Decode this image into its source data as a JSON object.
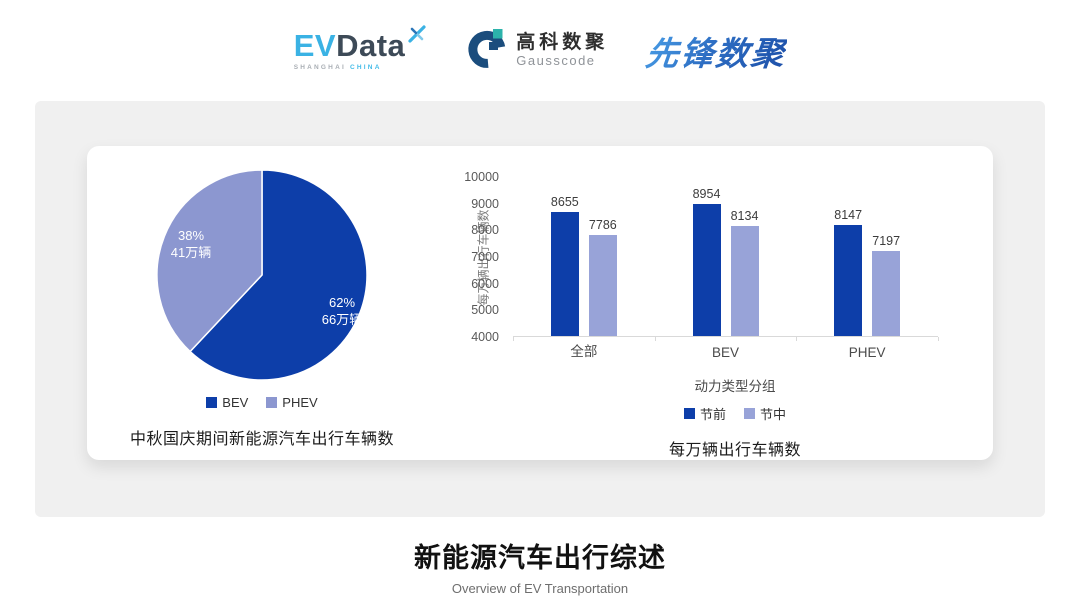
{
  "header": {
    "evdata_logo": {
      "ev": "EV",
      "data": "Data",
      "sub_left": "SHANGHAI",
      "sub_right": "CHINA"
    },
    "gausscode_logo": {
      "name_cn": "高科数聚",
      "name_en": "Gausscode"
    },
    "xianfeng_logo": {
      "text": "先锋数聚"
    }
  },
  "icons": {
    "evdata_pinwheel": "stylized blue X pinwheel",
    "gausscode_mark": "dark-blue G arc with teal square"
  },
  "colors": {
    "page_bg": "#ffffff",
    "panel_bg": "#f0f0f0",
    "card_bg": "#ffffff",
    "primary_blue": "#0d3ea9",
    "light_purple_bar": "#98a3d8",
    "light_purple_pie": "#8c97d0",
    "axis_gray": "#d9d9d9"
  },
  "chart_data": [
    {
      "type": "pie",
      "title": "中秋国庆期间新能源汽车出行车辆数",
      "legend_position": "bottom",
      "start_angle_deg": -90,
      "direction": "clockwise",
      "slices": [
        {
          "name": "BEV",
          "pct": 62,
          "pct_label": "62%",
          "value_label": "66万辆",
          "color": "#0d3ea9"
        },
        {
          "name": "PHEV",
          "pct": 38,
          "pct_label": "38%",
          "value_label": "41万辆",
          "color": "#8c97d0"
        }
      ]
    },
    {
      "type": "bar",
      "title": "每万辆出行车辆数",
      "xlabel": "动力类型分组",
      "ylabel": "每万辆出行车辆数",
      "categories": [
        "全部",
        "BEV",
        "PHEV"
      ],
      "series": [
        {
          "name": "节前",
          "color": "#0d3ea9",
          "values": [
            8655,
            8954,
            8147
          ]
        },
        {
          "name": "节中",
          "color": "#98a3d8",
          "values": [
            7786,
            8134,
            7197
          ]
        }
      ],
      "ylim": [
        4000,
        10000
      ],
      "yticks": [
        10000,
        9000,
        8000,
        7000,
        6000,
        5000,
        4000
      ],
      "grid": false,
      "legend_position": "bottom"
    }
  ],
  "footer": {
    "title": "新能源汽车出行综述",
    "subtitle": "Overview of EV Transportation"
  }
}
